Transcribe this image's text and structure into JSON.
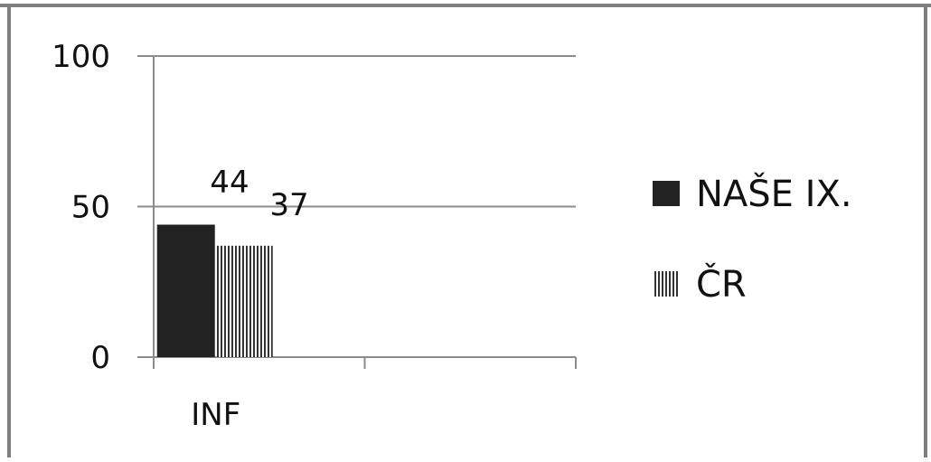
{
  "chart_data": {
    "type": "bar",
    "categories": [
      "INF",
      ""
    ],
    "series": [
      {
        "name": "NAŠE IX.",
        "values": [
          44,
          null
        ],
        "color": "#222222",
        "pattern": "solid"
      },
      {
        "name": "ČR",
        "values": [
          37,
          null
        ],
        "color": "#333333",
        "pattern": "vertical-stripes"
      }
    ],
    "ylim": [
      0,
      100
    ],
    "yticks": [
      0,
      50,
      100
    ],
    "ytick_labels": [
      "0",
      "50",
      "100"
    ],
    "data_labels": [
      "44",
      "37"
    ],
    "grid": true,
    "legend_position": "right",
    "title": "",
    "xlabel": "",
    "ylabel": ""
  }
}
